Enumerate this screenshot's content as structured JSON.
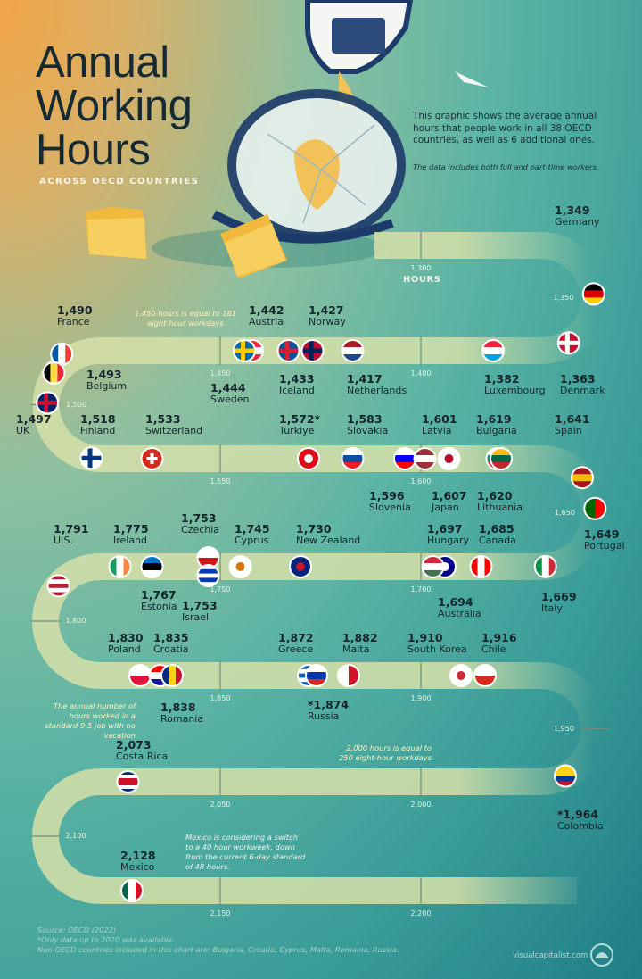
{
  "header": {
    "title_lines": [
      "Annual",
      "Working",
      "Hours"
    ],
    "subtitle": "ACROSS OECD COUNTRIES",
    "intro": "This graphic shows the average annual hours that people work in all 38 OECD countries, as well as 6 additional ones.",
    "intro_note": "The data includes both full and part-time workers."
  },
  "annotations": {
    "hours_label": "HOURS",
    "note_1450": "1,450 hours is equal to 181 eight-hour workdays",
    "note_standard": "The annual number of hours worked in a standard 9-5 job with no vacation",
    "note_2000": "2,000 hours is equal to 250 eight-hour workdays",
    "note_mexico": "Mexico is considering a switch to a 40 hour workweek, down from the current 6-day standard of 48 hours."
  },
  "footer": {
    "source": "Source: OECD (2022)",
    "footnote": "*Only data up to 2020 was available.",
    "non_oecd": "Non-OECD countries included in this chart are: Bulgaria, Croatia, Cyprus, Malta, Romania, Russia.",
    "brand": "visualcapitalist.com"
  },
  "colors": {
    "track": "#d6e0a8",
    "text": "#14262c",
    "accent_note": "#fff3c0"
  },
  "chart_data": {
    "type": "scatter",
    "title": "Annual Working Hours",
    "xlabel": "HOURS",
    "axis_range": [
      1300,
      2200
    ],
    "ticks": [
      "1,300",
      "1,350",
      "1,400",
      "1,450",
      "1,500",
      "1,550",
      "1,600",
      "1,650",
      "1,700",
      "1,750",
      "1,800",
      "1,850",
      "1,900",
      "1,950",
      "2,000",
      "2,050",
      "2,100",
      "2,150",
      "2,200"
    ],
    "tick_values": [
      1300,
      1350,
      1400,
      1450,
      1500,
      1550,
      1600,
      1650,
      1700,
      1750,
      1800,
      1850,
      1900,
      1950,
      2000,
      2050,
      2100,
      2150,
      2200
    ],
    "countries": [
      {
        "name": "Germany",
        "value": 1349,
        "display": "1,349",
        "flag": [
          "#000000",
          "#dd0000",
          "#ffce00"
        ],
        "dir": "h"
      },
      {
        "name": "Denmark",
        "value": 1363,
        "display": "1,363",
        "flag": [
          "#c8102e",
          "#ffffff"
        ],
        "dir": "cross"
      },
      {
        "name": "Luxembourg",
        "value": 1382,
        "display": "1,382",
        "flag": [
          "#ed2939",
          "#ffffff",
          "#00a1de"
        ],
        "dir": "h"
      },
      {
        "name": "Netherlands",
        "value": 1417,
        "display": "1,417",
        "flag": [
          "#ae1c28",
          "#ffffff",
          "#21468b"
        ],
        "dir": "h"
      },
      {
        "name": "Norway",
        "value": 1427,
        "display": "1,427",
        "flag": [
          "#ba0c2f",
          "#00205b"
        ],
        "dir": "cross"
      },
      {
        "name": "Iceland",
        "value": 1433,
        "display": "1,433",
        "flag": [
          "#02529c",
          "#dc1e35"
        ],
        "dir": "cross"
      },
      {
        "name": "Austria",
        "value": 1442,
        "display": "1,442",
        "flag": [
          "#ed2939",
          "#ffffff",
          "#ed2939"
        ],
        "dir": "h"
      },
      {
        "name": "Sweden",
        "value": 1444,
        "display": "1,444",
        "flag": [
          "#006aa7",
          "#fecc00"
        ],
        "dir": "cross"
      },
      {
        "name": "France",
        "value": 1490,
        "display": "1,490",
        "flag": [
          "#0055a4",
          "#ffffff",
          "#ef4135"
        ],
        "dir": "v"
      },
      {
        "name": "Belgium",
        "value": 1493,
        "display": "1,493",
        "flag": [
          "#000000",
          "#fae042",
          "#ed2939"
        ],
        "dir": "v"
      },
      {
        "name": "UK",
        "value": 1497,
        "display": "1,497",
        "flag": [
          "#012169",
          "#c8102e"
        ],
        "dir": "cross"
      },
      {
        "name": "Finland",
        "value": 1518,
        "display": "1,518",
        "flag": [
          "#ffffff",
          "#003580"
        ],
        "dir": "cross"
      },
      {
        "name": "Switzerland",
        "value": 1533,
        "display": "1,533",
        "flag": [
          "#d52b1e",
          "#ffffff"
        ],
        "dir": "plus"
      },
      {
        "name": "Türkiye",
        "value": 1572,
        "display": "1,572*",
        "flag": [
          "#e30a17",
          "#ffffff"
        ],
        "dir": "moon"
      },
      {
        "name": "Slovakia",
        "value": 1583,
        "display": "1,583",
        "flag": [
          "#ffffff",
          "#0b4ea2",
          "#ee1c25"
        ],
        "dir": "h"
      },
      {
        "name": "Slovenia",
        "value": 1596,
        "display": "1,596",
        "flag": [
          "#ffffff",
          "#0000ff",
          "#ff0000"
        ],
        "dir": "h"
      },
      {
        "name": "Latvia",
        "value": 1601,
        "display": "1,601",
        "flag": [
          "#9e3039",
          "#ffffff",
          "#9e3039"
        ],
        "dir": "h"
      },
      {
        "name": "Japan",
        "value": 1607,
        "display": "1,607",
        "flag": [
          "#ffffff",
          "#bc002d"
        ],
        "dir": "dot"
      },
      {
        "name": "Bulgaria",
        "value": 1619,
        "display": "1,619",
        "flag": [
          "#ffffff",
          "#00966e",
          "#d62612"
        ],
        "dir": "h"
      },
      {
        "name": "Lithuania",
        "value": 1620,
        "display": "1,620",
        "flag": [
          "#fdb913",
          "#006a44",
          "#c1272d"
        ],
        "dir": "h"
      },
      {
        "name": "Spain",
        "value": 1641,
        "display": "1,641",
        "flag": [
          "#aa151b",
          "#f1bf00",
          "#aa151b"
        ],
        "dir": "h"
      },
      {
        "name": "Portugal",
        "value": 1649,
        "display": "1,649",
        "flag": [
          "#006600",
          "#ff0000"
        ],
        "dir": "v"
      },
      {
        "name": "Italy",
        "value": 1669,
        "display": "1,669",
        "flag": [
          "#009246",
          "#ffffff",
          "#ce2b37"
        ],
        "dir": "v"
      },
      {
        "name": "Canada",
        "value": 1685,
        "display": "1,685",
        "flag": [
          "#ff0000",
          "#ffffff",
          "#ff0000"
        ],
        "dir": "v"
      },
      {
        "name": "Australia",
        "value": 1694,
        "display": "1,694",
        "flag": [
          "#00008b",
          "#ffffff"
        ],
        "dir": "dot"
      },
      {
        "name": "Hungary",
        "value": 1697,
        "display": "1,697",
        "flag": [
          "#ce2939",
          "#ffffff",
          "#477050"
        ],
        "dir": "h"
      },
      {
        "name": "New Zealand",
        "value": 1730,
        "display": "1,730",
        "flag": [
          "#00247d",
          "#cc142b"
        ],
        "dir": "dot"
      },
      {
        "name": "Cyprus",
        "value": 1745,
        "display": "1,745",
        "flag": [
          "#ffffff",
          "#d57800"
        ],
        "dir": "dot"
      },
      {
        "name": "Czechia",
        "value": 1753,
        "display": "1,753",
        "flag": [
          "#ffffff",
          "#d7141a"
        ],
        "dir": "h"
      },
      {
        "name": "Israel",
        "value": 1753,
        "display": "1,753",
        "flag": [
          "#ffffff",
          "#0038b8",
          "#ffffff",
          "#0038b8",
          "#ffffff"
        ],
        "dir": "h"
      },
      {
        "name": "Estonia",
        "value": 1767,
        "display": "1,767",
        "flag": [
          "#0072ce",
          "#000000",
          "#ffffff"
        ],
        "dir": "h"
      },
      {
        "name": "Ireland",
        "value": 1775,
        "display": "1,775",
        "flag": [
          "#169b62",
          "#ffffff",
          "#ff883e"
        ],
        "dir": "v"
      },
      {
        "name": "U.S.",
        "value": 1791,
        "display": "1,791",
        "flag": [
          "#b22234",
          "#ffffff",
          "#b22234",
          "#ffffff",
          "#b22234"
        ],
        "dir": "h"
      },
      {
        "name": "Poland",
        "value": 1830,
        "display": "1,830",
        "flag": [
          "#ffffff",
          "#dc143c"
        ],
        "dir": "h"
      },
      {
        "name": "Croatia",
        "value": 1835,
        "display": "1,835",
        "flag": [
          "#ff0000",
          "#ffffff",
          "#171796"
        ],
        "dir": "h"
      },
      {
        "name": "Romania",
        "value": 1838,
        "display": "1,838",
        "flag": [
          "#002b7f",
          "#fcd116",
          "#ce1126"
        ],
        "dir": "v"
      },
      {
        "name": "Greece",
        "value": 1872,
        "display": "1,872",
        "flag": [
          "#0d5eaf",
          "#ffffff",
          "#0d5eaf",
          "#ffffff",
          "#0d5eaf"
        ],
        "dir": "h"
      },
      {
        "name": "Russia",
        "value": 1874,
        "display": "*1,874",
        "flag": [
          "#ffffff",
          "#0039a6",
          "#d52b1e"
        ],
        "dir": "h"
      },
      {
        "name": "Malta",
        "value": 1882,
        "display": "1,882",
        "flag": [
          "#ffffff",
          "#cf142b"
        ],
        "dir": "v"
      },
      {
        "name": "South Korea",
        "value": 1910,
        "display": "1,910",
        "flag": [
          "#ffffff",
          "#cd2e3a"
        ],
        "dir": "dot"
      },
      {
        "name": "Chile",
        "value": 1916,
        "display": "1,916",
        "flag": [
          "#ffffff",
          "#d52b1e"
        ],
        "dir": "h"
      },
      {
        "name": "Colombia",
        "value": 1964,
        "display": "*1,964",
        "flag": [
          "#fcd116",
          "#fcd116",
          "#003893",
          "#ce1126"
        ],
        "dir": "h"
      },
      {
        "name": "Costa Rica",
        "value": 2073,
        "display": "2,073",
        "flag": [
          "#002b7f",
          "#ffffff",
          "#ce1126",
          "#ce1126",
          "#ffffff",
          "#002b7f"
        ],
        "dir": "h"
      },
      {
        "name": "Mexico",
        "value": 2128,
        "display": "2,128",
        "flag": [
          "#006847",
          "#ffffff",
          "#ce1126"
        ],
        "dir": "v"
      }
    ]
  }
}
